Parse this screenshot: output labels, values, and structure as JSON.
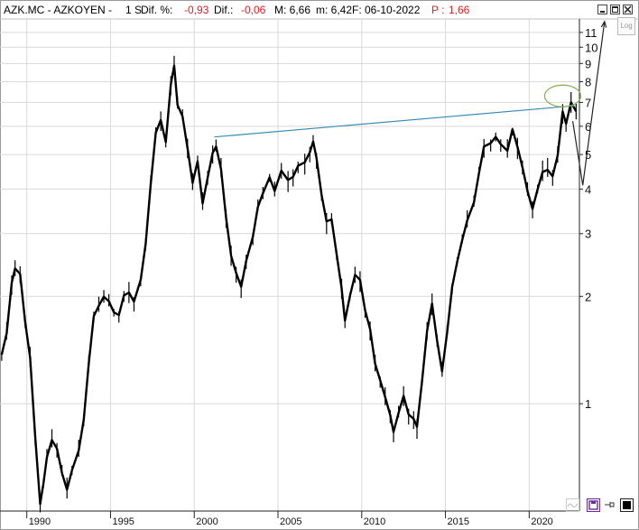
{
  "header": {
    "symbol": "AZK.MC - AZKOYEN -",
    "flags": "1 S",
    "dif_pct_label": "Dif. %:",
    "dif_pct_value": "-0,93",
    "dif_label": "Dif.:",
    "dif_value": "-0,06",
    "max_text": "M: 6,66",
    "min_text": "m: 6,42",
    "date_text": "F: 06-10-2022",
    "p_label": "P :",
    "p_value": "1,66"
  },
  "log_button": "Log",
  "colors": {
    "price": "#000000",
    "trendline": "#3b8bb5",
    "circle": "#7fb24a",
    "pct_value": "#e0201c"
  },
  "chart_data": {
    "type": "line",
    "title": "",
    "xlabel": "",
    "ylabel": "",
    "y_scale": "log",
    "y_ticks": [
      "1",
      "2",
      "3",
      "4",
      "5",
      "6",
      "7",
      "8",
      "9",
      "10",
      "11"
    ],
    "x_ticks": [
      "1990",
      "1995",
      "2000",
      "2005",
      "2010",
      "2015",
      "2020"
    ],
    "x_range": [
      1988.4,
      2023.0
    ],
    "ylim": [
      0.5,
      12
    ],
    "series": [
      {
        "values": [
          [
            1988.5,
            1.35
          ],
          [
            1988.8,
            1.6
          ],
          [
            1989.1,
            2.15
          ],
          [
            1989.3,
            2.4
          ],
          [
            1989.6,
            2.3
          ],
          [
            1989.9,
            1.7
          ],
          [
            1990.2,
            1.35
          ],
          [
            1990.5,
            0.8
          ],
          [
            1990.8,
            0.52
          ],
          [
            1991.0,
            0.6
          ],
          [
            1991.2,
            0.72
          ],
          [
            1991.5,
            0.8
          ],
          [
            1991.8,
            0.74
          ],
          [
            1992.1,
            0.65
          ],
          [
            1992.4,
            0.58
          ],
          [
            1992.7,
            0.65
          ],
          [
            1993.1,
            0.75
          ],
          [
            1993.4,
            0.9
          ],
          [
            1993.7,
            1.3
          ],
          [
            1994.0,
            1.75
          ],
          [
            1994.3,
            1.9
          ],
          [
            1994.6,
            2.0
          ],
          [
            1994.9,
            1.95
          ],
          [
            1995.2,
            1.8
          ],
          [
            1995.5,
            1.75
          ],
          [
            1995.8,
            2.0
          ],
          [
            1996.1,
            2.05
          ],
          [
            1996.4,
            1.9
          ],
          [
            1996.8,
            2.2
          ],
          [
            1997.1,
            2.8
          ],
          [
            1997.4,
            4.2
          ],
          [
            1997.7,
            5.8
          ],
          [
            1998.0,
            6.2
          ],
          [
            1998.3,
            5.4
          ],
          [
            1998.6,
            7.8
          ],
          [
            1998.8,
            8.9
          ],
          [
            1999.0,
            7.0
          ],
          [
            1999.3,
            6.5
          ],
          [
            1999.6,
            5.2
          ],
          [
            1999.9,
            4.2
          ],
          [
            2000.2,
            4.8
          ],
          [
            2000.5,
            3.7
          ],
          [
            2000.8,
            4.3
          ],
          [
            2001.1,
            5.0
          ],
          [
            2001.3,
            5.3
          ],
          [
            2001.6,
            4.6
          ],
          [
            2001.9,
            3.3
          ],
          [
            2002.2,
            2.6
          ],
          [
            2002.5,
            2.3
          ],
          [
            2002.8,
            2.1
          ],
          [
            2003.1,
            2.5
          ],
          [
            2003.5,
            2.9
          ],
          [
            2003.8,
            3.6
          ],
          [
            2004.1,
            3.9
          ],
          [
            2004.5,
            4.3
          ],
          [
            2004.8,
            4.0
          ],
          [
            2005.2,
            4.5
          ],
          [
            2005.6,
            4.2
          ],
          [
            2005.9,
            4.3
          ],
          [
            2006.2,
            4.6
          ],
          [
            2006.6,
            4.7
          ],
          [
            2006.9,
            5.0
          ],
          [
            2007.1,
            5.5
          ],
          [
            2007.3,
            4.8
          ],
          [
            2007.6,
            3.8
          ],
          [
            2007.9,
            3.2
          ],
          [
            2008.2,
            3.3
          ],
          [
            2008.5,
            2.6
          ],
          [
            2008.8,
            2.1
          ],
          [
            2009.0,
            1.7
          ],
          [
            2009.3,
            2.0
          ],
          [
            2009.6,
            2.3
          ],
          [
            2009.9,
            2.2
          ],
          [
            2010.2,
            1.8
          ],
          [
            2010.5,
            1.6
          ],
          [
            2010.8,
            1.3
          ],
          [
            2011.1,
            1.15
          ],
          [
            2011.4,
            1.05
          ],
          [
            2011.7,
            0.92
          ],
          [
            2011.9,
            0.82
          ],
          [
            2012.2,
            0.95
          ],
          [
            2012.5,
            1.05
          ],
          [
            2012.8,
            0.92
          ],
          [
            2013.1,
            0.9
          ],
          [
            2013.3,
            0.85
          ],
          [
            2013.6,
            1.15
          ],
          [
            2013.9,
            1.6
          ],
          [
            2014.2,
            1.9
          ],
          [
            2014.5,
            1.5
          ],
          [
            2014.8,
            1.25
          ],
          [
            2015.1,
            1.6
          ],
          [
            2015.4,
            2.1
          ],
          [
            2015.7,
            2.5
          ],
          [
            2016.0,
            2.9
          ],
          [
            2016.3,
            3.3
          ],
          [
            2016.7,
            3.7
          ],
          [
            2017.0,
            4.5
          ],
          [
            2017.3,
            5.2
          ],
          [
            2017.7,
            5.3
          ],
          [
            2018.0,
            5.6
          ],
          [
            2018.3,
            5.3
          ],
          [
            2018.7,
            5.2
          ],
          [
            2019.0,
            5.8
          ],
          [
            2019.3,
            5.2
          ],
          [
            2019.6,
            4.6
          ],
          [
            2019.9,
            4.0
          ],
          [
            2020.2,
            3.5
          ],
          [
            2020.5,
            4.0
          ],
          [
            2020.8,
            4.5
          ],
          [
            2021.1,
            4.6
          ],
          [
            2021.4,
            4.3
          ],
          [
            2021.7,
            5.0
          ],
          [
            2022.0,
            6.5
          ],
          [
            2022.2,
            6.0
          ],
          [
            2022.5,
            7.0
          ],
          [
            2022.8,
            6.6
          ]
        ]
      }
    ],
    "annotations": [
      {
        "type": "trendline",
        "from": [
          2001.2,
          5.6
        ],
        "to": [
          2022.7,
          6.85
        ]
      },
      {
        "type": "ellipse",
        "center": [
          2022.0,
          7.3
        ]
      },
      {
        "type": "arrow",
        "points": [
          [
            2022.6,
            6.2
          ],
          [
            2023.2,
            4.1
          ],
          [
            2024.5,
            11.8
          ]
        ]
      }
    ]
  }
}
